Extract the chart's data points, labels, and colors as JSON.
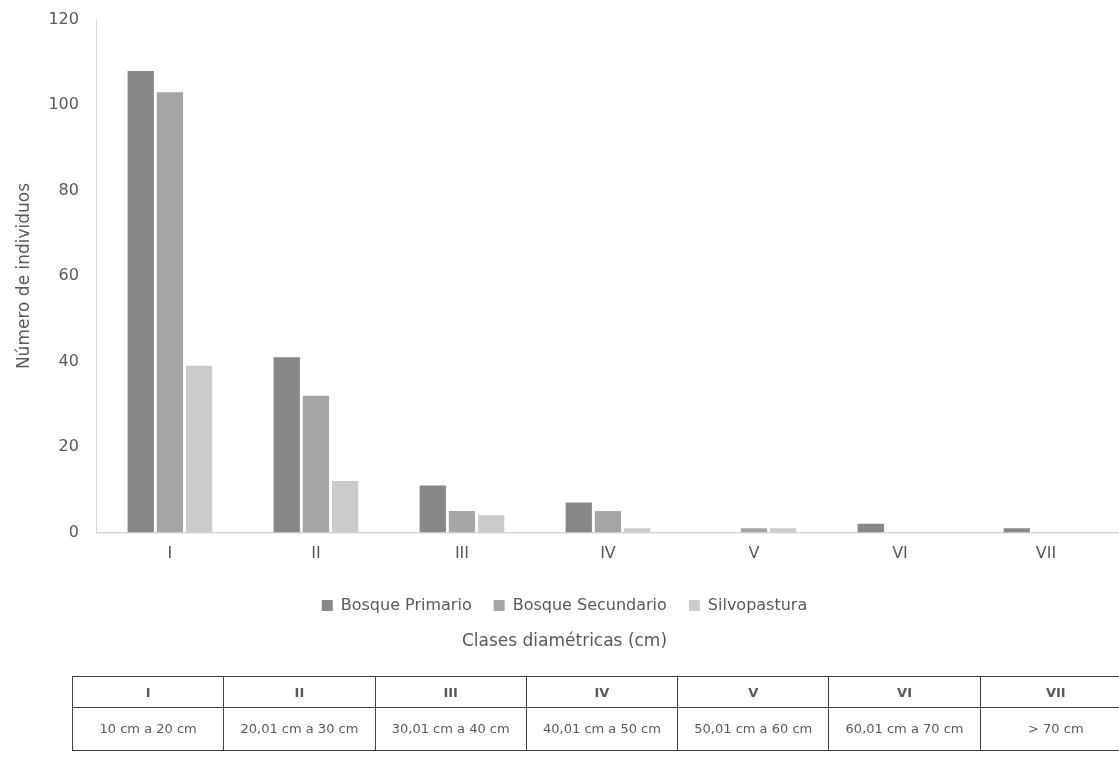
{
  "chart_data": {
    "type": "bar",
    "xlabel": "Clases diamétricas (cm)",
    "ylabel": "Número de individuos",
    "categories": [
      "I",
      "II",
      "III",
      "IV",
      "V",
      "VI",
      "VII"
    ],
    "series": [
      {
        "name": "Bosque Primario",
        "color": "#878787",
        "values": [
          108,
          41,
          11,
          7,
          0,
          2,
          1
        ]
      },
      {
        "name": "Bosque Secundario",
        "color": "#a5a5a5",
        "values": [
          103,
          32,
          5,
          5,
          1,
          0,
          0
        ]
      },
      {
        "name": "Silvopastura",
        "color": "#cbcbcb",
        "values": [
          39,
          12,
          4,
          1,
          1,
          0,
          0
        ]
      }
    ],
    "ylim": [
      0,
      120
    ],
    "yticks": [
      0,
      20,
      40,
      60,
      80,
      100,
      120
    ],
    "grid": false,
    "legend": "bottom",
    "annotations": [
      "10 cm a 20 cm",
      "20,01 cm a 30 cm",
      "30,01 cm a 40 cm",
      "40,01 cm a 50 cm",
      "50,01 cm a 60 cm",
      "60,01 cm a 70 cm",
      "> 70 cm"
    ]
  }
}
